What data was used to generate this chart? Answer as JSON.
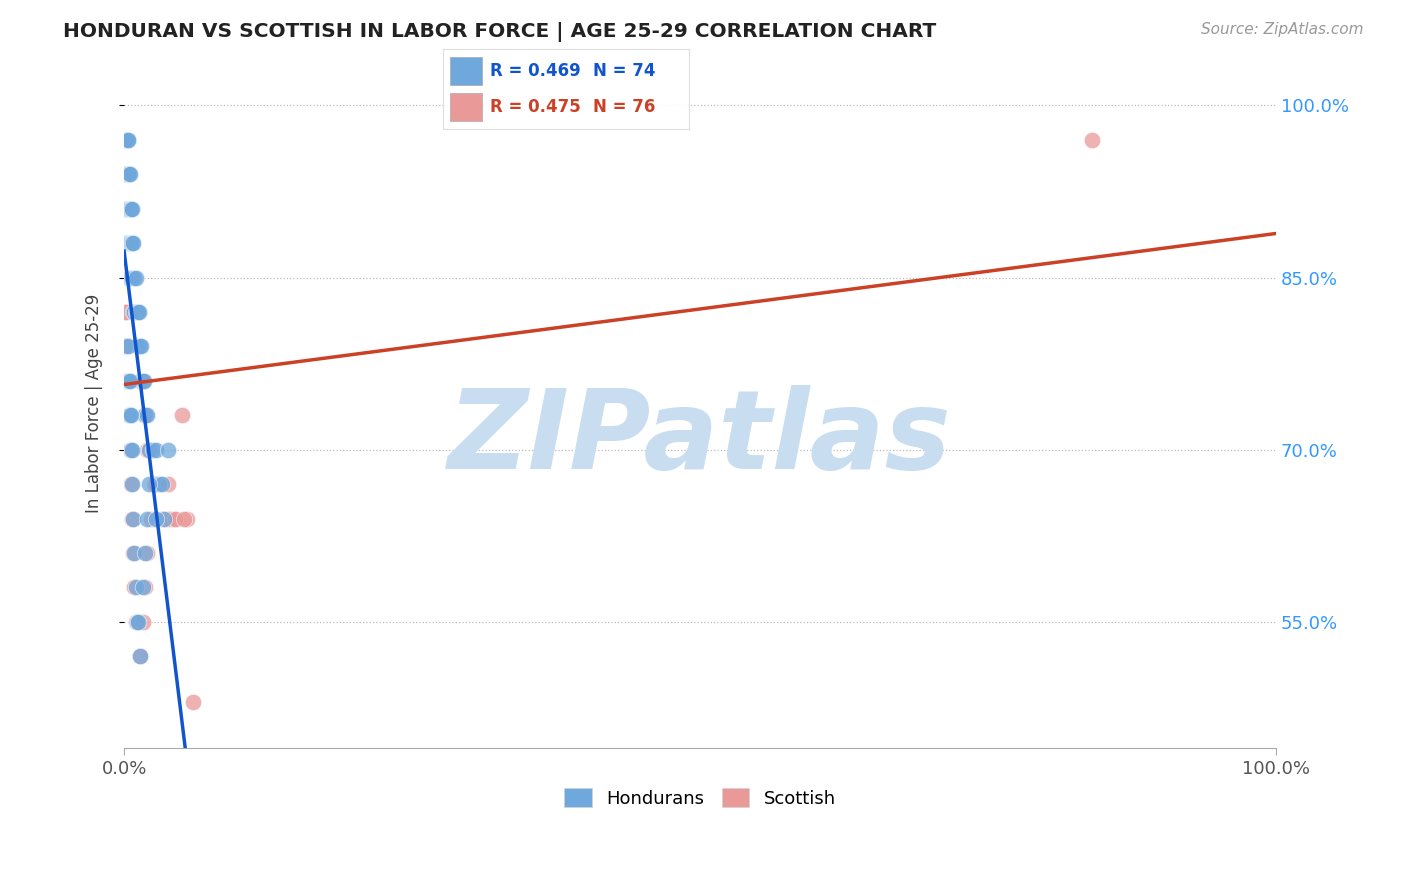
{
  "title": "HONDURAN VS SCOTTISH IN LABOR FORCE | AGE 25-29 CORRELATION CHART",
  "source_text": "Source: ZipAtlas.com",
  "ylabel": "In Labor Force | Age 25-29",
  "xmin": 0.0,
  "xmax": 1.0,
  "ymin": 0.44,
  "ymax": 1.04,
  "yticks": [
    0.55,
    0.7,
    0.85,
    1.0
  ],
  "ytick_labels": [
    "55.0%",
    "70.0%",
    "85.0%",
    "100.0%"
  ],
  "xtick_positions": [
    0.0,
    1.0
  ],
  "xtick_labels": [
    "0.0%",
    "100.0%"
  ],
  "honduran_R": 0.469,
  "honduran_N": 74,
  "scottish_R": 0.475,
  "scottish_N": 76,
  "honduran_color": "#6fa8dc",
  "scottish_color": "#ea9999",
  "trend_honduran_color": "#1155cc",
  "trend_scottish_color": "#cc4125",
  "background_color": "#ffffff",
  "watermark_color": "#c9ddf0",
  "honduran_x": [
    0.001,
    0.001,
    0.001,
    0.001,
    0.002,
    0.002,
    0.002,
    0.002,
    0.002,
    0.003,
    0.003,
    0.003,
    0.003,
    0.003,
    0.004,
    0.004,
    0.004,
    0.004,
    0.005,
    0.005,
    0.005,
    0.005,
    0.006,
    0.006,
    0.006,
    0.007,
    0.007,
    0.007,
    0.008,
    0.008,
    0.009,
    0.009,
    0.01,
    0.01,
    0.011,
    0.012,
    0.012,
    0.013,
    0.014,
    0.015,
    0.016,
    0.017,
    0.018,
    0.02,
    0.022,
    0.025,
    0.028,
    0.03,
    0.033,
    0.035,
    0.001,
    0.002,
    0.003,
    0.003,
    0.004,
    0.004,
    0.005,
    0.005,
    0.006,
    0.006,
    0.007,
    0.007,
    0.008,
    0.009,
    0.01,
    0.011,
    0.012,
    0.014,
    0.016,
    0.018,
    0.02,
    0.022,
    0.028,
    0.038
  ],
  "honduran_y": [
    0.88,
    0.91,
    0.94,
    0.97,
    0.88,
    0.91,
    0.94,
    0.97,
    0.97,
    0.88,
    0.91,
    0.94,
    0.97,
    0.97,
    0.85,
    0.88,
    0.91,
    0.94,
    0.85,
    0.88,
    0.91,
    0.94,
    0.85,
    0.88,
    0.91,
    0.85,
    0.88,
    0.91,
    0.82,
    0.88,
    0.82,
    0.85,
    0.82,
    0.85,
    0.82,
    0.79,
    0.82,
    0.82,
    0.79,
    0.79,
    0.76,
    0.76,
    0.73,
    0.73,
    0.7,
    0.7,
    0.7,
    0.67,
    0.67,
    0.64,
    0.79,
    0.76,
    0.76,
    0.79,
    0.73,
    0.76,
    0.73,
    0.76,
    0.7,
    0.73,
    0.67,
    0.7,
    0.64,
    0.61,
    0.58,
    0.55,
    0.55,
    0.52,
    0.58,
    0.61,
    0.64,
    0.67,
    0.64,
    0.7
  ],
  "scottish_x": [
    0.001,
    0.001,
    0.001,
    0.002,
    0.002,
    0.002,
    0.003,
    0.003,
    0.003,
    0.003,
    0.004,
    0.004,
    0.004,
    0.005,
    0.005,
    0.005,
    0.006,
    0.006,
    0.006,
    0.007,
    0.007,
    0.007,
    0.008,
    0.008,
    0.009,
    0.009,
    0.01,
    0.01,
    0.011,
    0.012,
    0.012,
    0.013,
    0.014,
    0.015,
    0.016,
    0.017,
    0.018,
    0.019,
    0.02,
    0.022,
    0.024,
    0.026,
    0.028,
    0.03,
    0.033,
    0.036,
    0.04,
    0.045,
    0.05,
    0.055,
    0.001,
    0.002,
    0.002,
    0.003,
    0.003,
    0.004,
    0.004,
    0.005,
    0.006,
    0.007,
    0.008,
    0.009,
    0.01,
    0.012,
    0.014,
    0.016,
    0.018,
    0.02,
    0.023,
    0.027,
    0.032,
    0.038,
    0.044,
    0.052,
    0.06,
    0.84
  ],
  "scottish_y": [
    0.91,
    0.94,
    0.97,
    0.88,
    0.91,
    0.94,
    0.88,
    0.91,
    0.94,
    0.97,
    0.85,
    0.88,
    0.91,
    0.85,
    0.88,
    0.91,
    0.85,
    0.88,
    0.91,
    0.82,
    0.85,
    0.88,
    0.82,
    0.85,
    0.82,
    0.85,
    0.79,
    0.82,
    0.79,
    0.79,
    0.82,
    0.79,
    0.76,
    0.76,
    0.76,
    0.73,
    0.73,
    0.73,
    0.7,
    0.7,
    0.7,
    0.67,
    0.67,
    0.67,
    0.64,
    0.64,
    0.64,
    0.64,
    0.73,
    0.64,
    0.82,
    0.79,
    0.82,
    0.76,
    0.79,
    0.73,
    0.76,
    0.7,
    0.67,
    0.64,
    0.61,
    0.58,
    0.55,
    0.55,
    0.52,
    0.55,
    0.58,
    0.61,
    0.64,
    0.67,
    0.67,
    0.67,
    0.64,
    0.64,
    0.48,
    0.97
  ]
}
